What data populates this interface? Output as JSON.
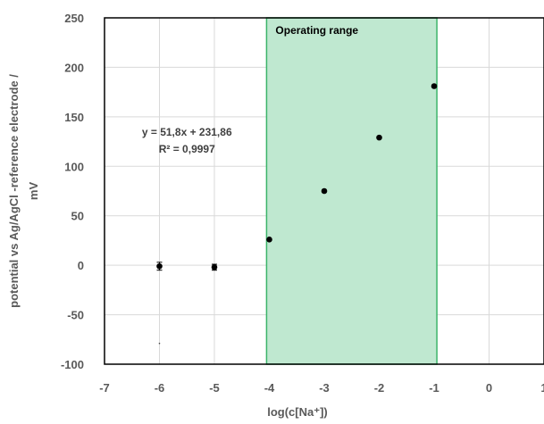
{
  "chart_data": {
    "type": "scatter",
    "title": "",
    "xlabel": "log(c[Na⁺])",
    "ylabel_line1": "potential vs Ag/AgCl -reference electrode /",
    "ylabel_line2": "mV",
    "xlim": [
      -7,
      1
    ],
    "ylim": [
      -100,
      250
    ],
    "x_ticks": [
      -7,
      -6,
      -5,
      -4,
      -3,
      -2,
      -1,
      0,
      1
    ],
    "y_ticks": [
      -100,
      -50,
      0,
      50,
      100,
      150,
      200,
      250
    ],
    "points": [
      {
        "x": -6,
        "y": -1,
        "err": 4
      },
      {
        "x": -5,
        "y": -2,
        "err": 3
      },
      {
        "x": -4,
        "y": 26,
        "err": 1
      },
      {
        "x": -3,
        "y": 75,
        "err": 1
      },
      {
        "x": -2,
        "y": 129,
        "err": 1
      },
      {
        "x": -1,
        "y": 181,
        "err": 1
      }
    ],
    "stray_point": {
      "x": -6,
      "y": -79
    },
    "operating_range": {
      "label": "Operating range",
      "x_start": -4.05,
      "x_end": -0.95,
      "color": "#bfe8d0",
      "border": "#3cb46a"
    },
    "fit_equation": "y = 51,8x + 231,86",
    "fit_r2": "R² = 0,9997",
    "fit_anchor": {
      "x": -5.5,
      "y": 131
    },
    "grid": true,
    "marker_color": "#000000"
  }
}
